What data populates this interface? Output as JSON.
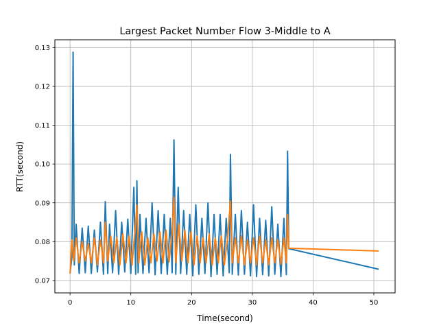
{
  "chart_data": {
    "type": "line",
    "title": "Largest Packet Number Flow 3-Middle to A",
    "xlabel": "Time(second)",
    "ylabel": "RTT(second)",
    "xlim": [
      -2.5,
      53.5
    ],
    "ylim": [
      0.0668,
      0.132
    ],
    "xticks": [
      0,
      10,
      20,
      30,
      40,
      50
    ],
    "xtick_labels": [
      "0",
      "10",
      "20",
      "30",
      "40",
      "50"
    ],
    "yticks": [
      0.07,
      0.08,
      0.09,
      0.1,
      0.11,
      0.12,
      0.13
    ],
    "ytick_labels": [
      "0.07",
      "0.08",
      "0.09",
      "0.10",
      "0.11",
      "0.12",
      "0.13"
    ],
    "grid": true,
    "legend": "none",
    "series": [
      {
        "color": "#1f77b4",
        "x": [
          0.0,
          0.3,
          0.5,
          0.7,
          1.0,
          1.5,
          2.0,
          2.5,
          3.0,
          3.5,
          4.0,
          4.5,
          5.0,
          5.5,
          5.8,
          6.2,
          6.5,
          7.0,
          7.5,
          8.0,
          8.5,
          9.0,
          9.5,
          10.0,
          10.5,
          10.8,
          11.0,
          11.2,
          11.5,
          12.0,
          12.5,
          13.0,
          13.5,
          14.0,
          14.5,
          15.0,
          15.5,
          16.0,
          16.5,
          16.8,
          17.1,
          17.4,
          17.8,
          18.2,
          18.7,
          19.2,
          19.7,
          20.2,
          20.7,
          21.2,
          21.7,
          22.2,
          22.7,
          23.2,
          23.7,
          24.2,
          24.7,
          25.2,
          25.7,
          26.2,
          26.4,
          26.7,
          27.2,
          27.7,
          28.2,
          28.7,
          29.2,
          29.7,
          30.2,
          30.7,
          31.2,
          31.7,
          32.2,
          32.7,
          33.2,
          33.7,
          34.2,
          34.7,
          35.2,
          35.6,
          35.8,
          36.0,
          50.8
        ],
        "y": [
          0.0718,
          0.076,
          0.1288,
          0.074,
          0.0845,
          0.0718,
          0.0835,
          0.072,
          0.084,
          0.0718,
          0.083,
          0.0722,
          0.085,
          0.0716,
          0.0903,
          0.0718,
          0.0845,
          0.072,
          0.088,
          0.0716,
          0.085,
          0.0722,
          0.0858,
          0.0718,
          0.094,
          0.0716,
          0.0957,
          0.072,
          0.087,
          0.0718,
          0.086,
          0.072,
          0.09,
          0.0715,
          0.088,
          0.0718,
          0.087,
          0.0716,
          0.086,
          0.072,
          0.1062,
          0.0716,
          0.094,
          0.0718,
          0.088,
          0.0716,
          0.087,
          0.0712,
          0.0895,
          0.0716,
          0.086,
          0.0718,
          0.09,
          0.071,
          0.087,
          0.0716,
          0.087,
          0.0712,
          0.086,
          0.072,
          0.1025,
          0.0716,
          0.087,
          0.0714,
          0.088,
          0.0716,
          0.085,
          0.0712,
          0.0895,
          0.071,
          0.086,
          0.0715,
          0.0855,
          0.0712,
          0.089,
          0.0716,
          0.0845,
          0.071,
          0.086,
          0.0715,
          0.1033,
          0.0782,
          0.0729
        ]
      },
      {
        "color": "#ff7f0e",
        "x": [
          0.0,
          0.3,
          0.6,
          1.0,
          1.5,
          2.0,
          2.5,
          3.0,
          3.5,
          4.0,
          4.5,
          5.0,
          5.5,
          5.8,
          6.2,
          6.7,
          7.2,
          7.7,
          8.2,
          8.7,
          9.2,
          9.7,
          10.2,
          10.7,
          11.0,
          11.3,
          11.8,
          12.3,
          12.8,
          13.3,
          13.8,
          14.3,
          14.8,
          15.3,
          15.8,
          16.3,
          16.8,
          17.1,
          17.4,
          17.9,
          18.4,
          18.9,
          19.4,
          19.9,
          20.4,
          20.9,
          21.4,
          21.9,
          22.4,
          22.9,
          23.4,
          23.9,
          24.4,
          24.9,
          25.4,
          25.9,
          26.4,
          26.7,
          27.2,
          27.7,
          28.2,
          28.7,
          29.2,
          29.7,
          30.2,
          30.7,
          31.2,
          31.7,
          32.2,
          32.7,
          33.2,
          33.7,
          34.2,
          34.7,
          35.2,
          35.6,
          35.8,
          36.0,
          50.8
        ],
        "y": [
          0.0718,
          0.0805,
          0.075,
          0.081,
          0.0745,
          0.08,
          0.075,
          0.0795,
          0.0745,
          0.081,
          0.074,
          0.0805,
          0.0745,
          0.085,
          0.075,
          0.0815,
          0.0745,
          0.081,
          0.074,
          0.082,
          0.0745,
          0.0815,
          0.074,
          0.083,
          0.0895,
          0.0745,
          0.0825,
          0.074,
          0.081,
          0.0745,
          0.082,
          0.075,
          0.0825,
          0.0745,
          0.083,
          0.0748,
          0.0825,
          0.0915,
          0.0745,
          0.0845,
          0.075,
          0.083,
          0.0745,
          0.0825,
          0.074,
          0.0815,
          0.0745,
          0.081,
          0.0745,
          0.082,
          0.074,
          0.081,
          0.0745,
          0.0815,
          0.074,
          0.0805,
          0.0905,
          0.0745,
          0.081,
          0.0745,
          0.0815,
          0.074,
          0.0805,
          0.0745,
          0.081,
          0.074,
          0.0815,
          0.0745,
          0.0805,
          0.074,
          0.081,
          0.0745,
          0.0805,
          0.0742,
          0.081,
          0.0745,
          0.087,
          0.0783,
          0.0776
        ]
      }
    ]
  }
}
